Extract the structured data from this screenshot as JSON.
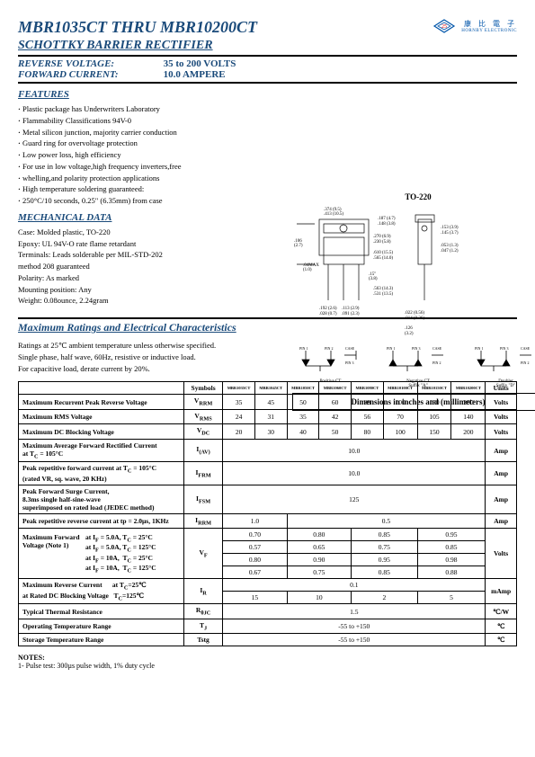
{
  "header": {
    "title": "MBR1035CT THRU MBR10200CT",
    "subtitle": "SCHOTTKY BARRIER RECTIFIER",
    "logo_cn": "康 比 電 子",
    "logo_en": "HORNBY ELECTRONIC"
  },
  "specs": {
    "reverse_label": "REVERSE VOLTAGE:",
    "reverse_val": "35 to 200 VOLTS",
    "forward_label": "FORWARD CURRENT:",
    "forward_val": "10.0 AMPERE"
  },
  "features": {
    "head": "FEATURES",
    "items": [
      "Plastic package has Underwriters Laboratory",
      "Flammability Classifications 94V-0",
      "Metal silicon junction, majority carrier conduction",
      "Guard ring for overvoltage protection",
      "Low power loss, high efficiency",
      "For use in low voltage,high frequency inverters,free",
      "whelling,and polarity protection applications",
      "High temperature soldering guaranteed:",
      "250°C/10 seconds, 0.25\" (6.35mm) from case"
    ]
  },
  "mech": {
    "head": "MECHANICAL DATA",
    "items": [
      "Case: Molded plastic, TO-220",
      "Epoxy: UL 94V-O rate flame retardant",
      "Terminals: Leads solderable per MIL-STD-202",
      "method 208 guaranteed",
      "Polarity: As marked",
      "Mounting position: Any",
      "Weight: 0.08ounce, 2.24gram"
    ]
  },
  "pkg": {
    "label": "TO-220",
    "dim_caption": "Dimensions in inches and (millimeters)"
  },
  "pins": {
    "p1": {
      "pin1": "PIN 1",
      "pin2": "PIN 2",
      "pin3": "CASE\nPIN 3",
      "label": "Positive CT"
    },
    "p2": {
      "pin1": "PIN 1",
      "pin2": "PIN 3",
      "pin3": "CASE\nPIN 2",
      "label": "Negative CT\nSuffix \"A\""
    },
    "p3": {
      "pin1": "PIN 1",
      "pin2": "PIN 3",
      "pin3": "CASE\nPIN 2",
      "label": "Doubler\nSuffix \"D\""
    }
  },
  "maxrat": {
    "head": "Maximum Ratings and Electrical Characteristics",
    "line1": "Ratings at 25℃ ambient temperature unless otherwise specified.",
    "line2": "Single phase, half wave, 60Hz, resistive or inductive load.",
    "line3": "For capacitive load, derate current by 20%."
  },
  "table": {
    "cols": [
      "Symbols",
      "MBR1035CT",
      "MBR1045CT",
      "MBR1050CT",
      "MBR1060CT",
      "MBR1080CT",
      "MBR10100CT",
      "MBR10150CT",
      "MBR10200CT",
      "Units"
    ],
    "rows": [
      {
        "label": "Maximum Recurrent Peak Reverse Voltage",
        "sym": "V<sub>RRM</sub>",
        "vals": [
          "35",
          "45",
          "50",
          "60",
          "80",
          "100",
          "150",
          "200"
        ],
        "unit": "Volts"
      },
      {
        "label": "Maximum RMS Voltage",
        "sym": "V<sub>RMS</sub>",
        "vals": [
          "24",
          "31",
          "35",
          "42",
          "56",
          "70",
          "105",
          "140"
        ],
        "unit": "Volts"
      },
      {
        "label": "Maximum DC Blocking Voltage",
        "sym": "V<sub>DC</sub>",
        "vals": [
          "20",
          "30",
          "40",
          "50",
          "80",
          "100",
          "150",
          "200"
        ],
        "unit": "Volts"
      },
      {
        "label": "Maximum Average Forward Rectified Current<br>at T<sub>C</sub> = 105°C",
        "sym": "I<sub>(AV)</sub>",
        "span": "10.0",
        "unit": "Amp"
      },
      {
        "label": "Peak repetitive forward current at T<sub>C</sub> = 105°C<br>(rated VR, sq. wave, 20 KHz)",
        "sym": "I<sub>FRM</sub>",
        "span": "10.0",
        "unit": "Amp"
      },
      {
        "label": "Peak Forward Surge Current,<br>8.3ms single half-sine-wave<br>superimposed on rated load (JEDEC method)",
        "sym": "I<sub>FSM</sub>",
        "span": "125",
        "unit": "Amp"
      },
      {
        "label": "Peak repetitive reverse current at tp = 2.0µs, 1KHz",
        "sym": "I<sub>RRM</sub>",
        "groups": [
          {
            "span": 2,
            "val": "1.0"
          },
          {
            "span": 6,
            "val": "0.5"
          }
        ],
        "unit": "Amp"
      },
      {
        "label": "Typical Thermal Resistance",
        "sym": "R<sub>θJC</sub>",
        "span": "1.5",
        "unit": "℃/W"
      },
      {
        "label": "Operating Temperature Range",
        "sym": "T<sub>J</sub>",
        "span": "-55 to +150",
        "unit": "℃"
      },
      {
        "label": "Storage Temperature Range",
        "sym": "Tstg",
        "span": "-55 to +150",
        "unit": "℃"
      }
    ],
    "vf": {
      "label": "Maximum Forward<br>Voltage (Note 1)",
      "conds": [
        "at I<sub>F</sub> = 5.0A, T<sub>C</sub> = 25°C",
        "at I<sub>F</sub> = 5.0A, T<sub>C</sub> = 125°C",
        "at I<sub>F</sub> = 10A,&nbsp;&nbsp;T<sub>C</sub> = 25°C",
        "at I<sub>F</sub> = 10A,&nbsp;&nbsp;T<sub>C</sub> = 125°C"
      ],
      "sym": "V<sub>F</sub>",
      "rows": [
        [
          {
            "span": 2,
            "val": "0.70"
          },
          {
            "span": 2,
            "val": "0.80"
          },
          {
            "span": 2,
            "val": "0.85"
          },
          {
            "span": 2,
            "val": "0.95"
          }
        ],
        [
          {
            "span": 2,
            "val": "0.57"
          },
          {
            "span": 2,
            "val": "0.65"
          },
          {
            "span": 2,
            "val": "0.75"
          },
          {
            "span": 2,
            "val": "0.85"
          }
        ],
        [
          {
            "span": 2,
            "val": "0.80"
          },
          {
            "span": 2,
            "val": "0.90"
          },
          {
            "span": 2,
            "val": "0.95"
          },
          {
            "span": 2,
            "val": "0.98"
          }
        ],
        [
          {
            "span": 2,
            "val": "0.67"
          },
          {
            "span": 2,
            "val": "0.75"
          },
          {
            "span": 2,
            "val": "0.85"
          },
          {
            "span": 2,
            "val": "0.88"
          }
        ]
      ],
      "unit": "Volts"
    },
    "ir": {
      "label": "Maximum Reverse Current&nbsp;&nbsp;&nbsp;&nbsp;&nbsp;&nbsp;at T<sub>C</sub>=25℃<br>at Rated DC Blocking Voltage&nbsp;&nbsp;&nbsp;T<sub>C</sub>=125℃",
      "sym": "I<sub>R</sub>",
      "row1": {
        "span": 8,
        "val": "0.1"
      },
      "row2": [
        {
          "span": 2,
          "val": "15"
        },
        {
          "span": 2,
          "val": "10"
        },
        {
          "span": 2,
          "val": "2"
        },
        {
          "span": 2,
          "val": "5"
        }
      ],
      "unit": "mAmp"
    }
  },
  "notes": {
    "head": "NOTES:",
    "n1": "1- Pulse test: 300µs pulse width, 1% duty cycle"
  },
  "colors": {
    "accent": "#1a4a7a",
    "logo": "#0055aa"
  }
}
